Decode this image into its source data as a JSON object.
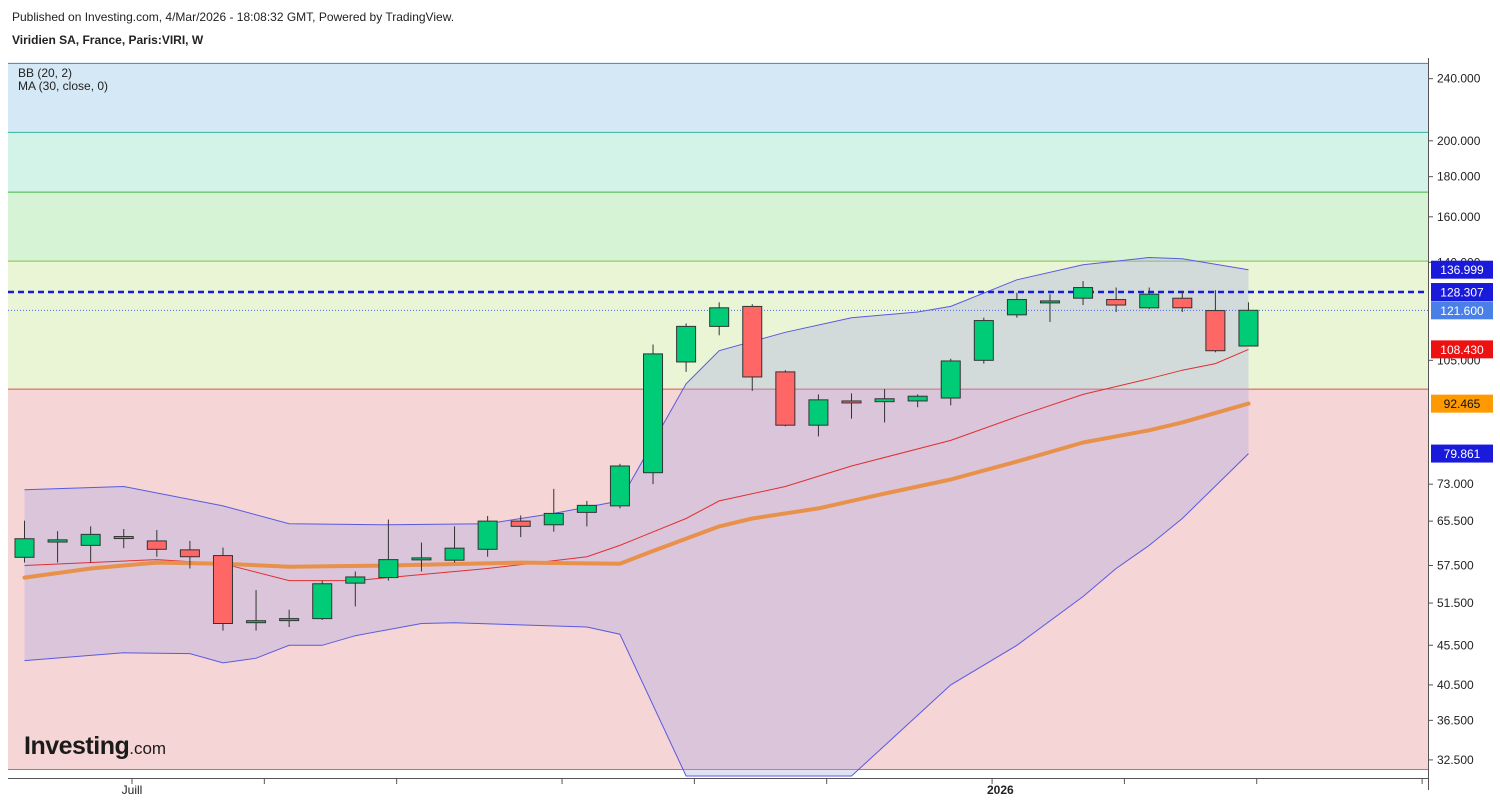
{
  "header": {
    "published": "Published on Investing.com, 4/Mar/2026 - 18:08:32 GMT, Powered by TradingView.",
    "instrument": "Viridien SA, France, Paris:VIRI, W"
  },
  "indicators": {
    "bb": "BB (20, 2)",
    "ma": "MA (30, close, 0)"
  },
  "logo": {
    "name": "Investing",
    "suffix": ".com"
  },
  "chart_data": {
    "type": "candlestick",
    "scale": "log",
    "ylim": [
      31.0,
      255.0
    ],
    "y_ticks": [
      {
        "value": 240,
        "label": "240.000"
      },
      {
        "value": 200,
        "label": "200.000"
      },
      {
        "value": 180,
        "label": "180.000"
      },
      {
        "value": 160,
        "label": "160.000"
      },
      {
        "value": 140,
        "label": "140.000"
      },
      {
        "value": 105,
        "label": "105.000"
      },
      {
        "value": 73,
        "label": "73.000"
      },
      {
        "value": 65.5,
        "label": "65.500"
      },
      {
        "value": 57.5,
        "label": "57.500"
      },
      {
        "value": 51.5,
        "label": "51.500"
      },
      {
        "value": 45.5,
        "label": "45.500"
      },
      {
        "value": 40.5,
        "label": "40.500"
      },
      {
        "value": 36.5,
        "label": "36.500"
      },
      {
        "value": 32.5,
        "label": "32.500"
      }
    ],
    "x_labels": [
      {
        "index": 3.25,
        "label": "Juill"
      },
      {
        "index": 29.5,
        "label": "2026"
      }
    ],
    "x_ticks": [
      3.25,
      7.25,
      11.25,
      16.25,
      20.25,
      24.25,
      29.25,
      33.25,
      37.25,
      42.25
    ],
    "fib_bands": [
      {
        "from": 31.6,
        "to": 96.5,
        "color": "#f5d5d5"
      },
      {
        "from": 96.5,
        "to": 140.5,
        "color": "#eaf5d5"
      },
      {
        "from": 140.5,
        "to": 172.0,
        "color": "#d6f3d6"
      },
      {
        "from": 172.0,
        "to": 205.0,
        "color": "#d4f3e8"
      },
      {
        "from": 205.0,
        "to": 251.0,
        "color": "#d5e8f5"
      }
    ],
    "fib_lines": [
      {
        "value": 31.6,
        "color": "#888888"
      },
      {
        "value": 96.5,
        "color": "#d9534f"
      },
      {
        "value": 140.5,
        "color": "#88c040"
      },
      {
        "value": 172.0,
        "color": "#44b844"
      },
      {
        "value": 205.0,
        "color": "#33b59a"
      },
      {
        "value": 251.0,
        "color": "#3a86c8"
      }
    ],
    "candles": [
      {
        "o": 58.9,
        "h": 65.6,
        "l": 58.0,
        "c": 62.2
      },
      {
        "o": 61.6,
        "h": 63.6,
        "l": 58.0,
        "c": 62.0
      },
      {
        "o": 61.0,
        "h": 64.5,
        "l": 58.0,
        "c": 63.0
      },
      {
        "o": 62.6,
        "h": 64.0,
        "l": 60.5,
        "c": 62.3
      },
      {
        "o": 61.8,
        "h": 63.8,
        "l": 59.0,
        "c": 60.3
      },
      {
        "o": 60.2,
        "h": 61.8,
        "l": 57.0,
        "c": 59.0
      },
      {
        "o": 59.2,
        "h": 60.6,
        "l": 47.5,
        "c": 48.5
      },
      {
        "o": 48.8,
        "h": 53.5,
        "l": 47.5,
        "c": 48.9
      },
      {
        "o": 49.0,
        "h": 50.5,
        "l": 48.0,
        "c": 49.2
      },
      {
        "o": 49.2,
        "h": 55.0,
        "l": 49.0,
        "c": 54.5
      },
      {
        "o": 54.6,
        "h": 56.5,
        "l": 51.0,
        "c": 55.6
      },
      {
        "o": 55.5,
        "h": 65.8,
        "l": 55.0,
        "c": 58.5
      },
      {
        "o": 58.6,
        "h": 61.5,
        "l": 56.5,
        "c": 58.8
      },
      {
        "o": 58.4,
        "h": 64.5,
        "l": 58.0,
        "c": 60.5
      },
      {
        "o": 60.3,
        "h": 66.5,
        "l": 59.0,
        "c": 65.5
      },
      {
        "o": 65.5,
        "h": 66.6,
        "l": 62.5,
        "c": 64.5
      },
      {
        "o": 64.8,
        "h": 72.0,
        "l": 63.5,
        "c": 67.0
      },
      {
        "o": 67.2,
        "h": 69.5,
        "l": 64.5,
        "c": 68.6
      },
      {
        "o": 68.5,
        "h": 77.5,
        "l": 68.0,
        "c": 77.0
      },
      {
        "o": 75.5,
        "h": 110.0,
        "l": 73.0,
        "c": 107.0
      },
      {
        "o": 104.5,
        "h": 117.0,
        "l": 101.5,
        "c": 116.0
      },
      {
        "o": 116.0,
        "h": 124.5,
        "l": 113.0,
        "c": 122.5
      },
      {
        "o": 123.0,
        "h": 123.8,
        "l": 96.0,
        "c": 100.0
      },
      {
        "o": 101.5,
        "h": 102.0,
        "l": 86.5,
        "c": 86.8
      },
      {
        "o": 86.8,
        "h": 95.0,
        "l": 84.0,
        "c": 93.5
      },
      {
        "o": 93.2,
        "h": 95.3,
        "l": 88.5,
        "c": 92.8
      },
      {
        "o": 93.0,
        "h": 96.5,
        "l": 87.5,
        "c": 93.8
      },
      {
        "o": 93.2,
        "h": 95.0,
        "l": 91.5,
        "c": 94.5
      },
      {
        "o": 94.0,
        "h": 105.5,
        "l": 92.0,
        "c": 104.8
      },
      {
        "o": 105.0,
        "h": 119.0,
        "l": 104.0,
        "c": 118.0
      },
      {
        "o": 120.0,
        "h": 128.0,
        "l": 119.0,
        "c": 125.5
      },
      {
        "o": 124.7,
        "h": 127.5,
        "l": 117.5,
        "c": 125.0
      },
      {
        "o": 126.0,
        "h": 132.5,
        "l": 123.5,
        "c": 130.0
      },
      {
        "o": 125.5,
        "h": 130.0,
        "l": 121.0,
        "c": 123.5
      },
      {
        "o": 122.5,
        "h": 130.0,
        "l": 122.0,
        "c": 127.5
      },
      {
        "o": 126.0,
        "h": 128.5,
        "l": 121.0,
        "c": 122.5
      },
      {
        "o": 121.5,
        "h": 129.0,
        "l": 107.5,
        "c": 108.0
      },
      {
        "o": 109.5,
        "h": 124.5,
        "l": 109.5,
        "c": 121.6
      }
    ],
    "bb_upper": [
      {
        "i": 0,
        "v": 71.8
      },
      {
        "i": 3,
        "v": 72.5
      },
      {
        "i": 6,
        "v": 68.5
      },
      {
        "i": 8,
        "v": 65.0
      },
      {
        "i": 11,
        "v": 64.8
      },
      {
        "i": 14,
        "v": 65.0
      },
      {
        "i": 16,
        "v": 67.0
      },
      {
        "i": 18,
        "v": 69.5
      },
      {
        "i": 20,
        "v": 98.0
      },
      {
        "i": 21,
        "v": 108.0
      },
      {
        "i": 23,
        "v": 114.0
      },
      {
        "i": 25,
        "v": 119.0
      },
      {
        "i": 27,
        "v": 121.0
      },
      {
        "i": 28,
        "v": 123.0
      },
      {
        "i": 30,
        "v": 133.0
      },
      {
        "i": 32,
        "v": 139.0
      },
      {
        "i": 34,
        "v": 142.0
      },
      {
        "i": 35,
        "v": 141.5
      },
      {
        "i": 37,
        "v": 137.0
      }
    ],
    "bb_lower": [
      {
        "i": 0,
        "v": 43.5
      },
      {
        "i": 3,
        "v": 44.5
      },
      {
        "i": 5,
        "v": 44.4
      },
      {
        "i": 6,
        "v": 43.2
      },
      {
        "i": 7,
        "v": 43.8
      },
      {
        "i": 8,
        "v": 45.5
      },
      {
        "i": 9,
        "v": 45.5
      },
      {
        "i": 10,
        "v": 46.8
      },
      {
        "i": 12,
        "v": 48.5
      },
      {
        "i": 13,
        "v": 48.6
      },
      {
        "i": 17,
        "v": 48.0
      },
      {
        "i": 18,
        "v": 47.0
      },
      {
        "i": 20,
        "v": 30.2
      },
      {
        "i": 24,
        "v": 29.2
      },
      {
        "i": 25,
        "v": 30.6
      },
      {
        "i": 28,
        "v": 40.5
      },
      {
        "i": 30,
        "v": 45.5
      },
      {
        "i": 32,
        "v": 52.5
      },
      {
        "i": 33,
        "v": 57.0
      },
      {
        "i": 34,
        "v": 61.0
      },
      {
        "i": 35,
        "v": 66.0
      },
      {
        "i": 37,
        "v": 79.861
      }
    ],
    "bb_basis": [
      {
        "i": 0,
        "v": 57.5
      },
      {
        "i": 4,
        "v": 58.5
      },
      {
        "i": 6,
        "v": 57.8
      },
      {
        "i": 8,
        "v": 55.0
      },
      {
        "i": 10,
        "v": 55.0
      },
      {
        "i": 14,
        "v": 57.0
      },
      {
        "i": 17,
        "v": 59.0
      },
      {
        "i": 18,
        "v": 61.0
      },
      {
        "i": 20,
        "v": 66.0
      },
      {
        "i": 21,
        "v": 69.5
      },
      {
        "i": 23,
        "v": 72.5
      },
      {
        "i": 25,
        "v": 77.0
      },
      {
        "i": 28,
        "v": 83.0
      },
      {
        "i": 30,
        "v": 89.0
      },
      {
        "i": 32,
        "v": 95.0
      },
      {
        "i": 34,
        "v": 99.5
      },
      {
        "i": 35,
        "v": 102.0
      },
      {
        "i": 36,
        "v": 104.0
      },
      {
        "i": 37,
        "v": 108.43
      }
    ],
    "ma30": [
      {
        "i": 0,
        "v": 55.5
      },
      {
        "i": 2,
        "v": 57.0
      },
      {
        "i": 4,
        "v": 58.0
      },
      {
        "i": 6,
        "v": 57.8
      },
      {
        "i": 8,
        "v": 57.3
      },
      {
        "i": 11,
        "v": 57.5
      },
      {
        "i": 15,
        "v": 58.0
      },
      {
        "i": 18,
        "v": 57.8
      },
      {
        "i": 19,
        "v": 60.0
      },
      {
        "i": 21,
        "v": 64.5
      },
      {
        "i": 22,
        "v": 66.0
      },
      {
        "i": 24,
        "v": 68.0
      },
      {
        "i": 26,
        "v": 71.0
      },
      {
        "i": 28,
        "v": 74.0
      },
      {
        "i": 30,
        "v": 78.0
      },
      {
        "i": 32,
        "v": 82.5
      },
      {
        "i": 34,
        "v": 85.5
      },
      {
        "i": 35,
        "v": 87.5
      },
      {
        "i": 37,
        "v": 92.465
      }
    ],
    "h_lines": [
      {
        "value": 128.307,
        "color": "#1a1adb",
        "style": "dashed"
      },
      {
        "value": 121.6,
        "color": "#4a6ee8",
        "style": "dotted"
      }
    ],
    "price_labels": [
      {
        "value": 136.999,
        "label": "136.999",
        "bg": "#1a1adb",
        "fg": "#ffffff"
      },
      {
        "value": 128.307,
        "label": "128.307",
        "bg": "#1a1adb",
        "fg": "#ffffff"
      },
      {
        "value": 121.6,
        "label": "121.600",
        "bg": "#4a7fe8",
        "fg": "#ffffff"
      },
      {
        "value": 108.43,
        "label": "108.430",
        "bg": "#ee1111",
        "fg": "#ffffff"
      },
      {
        "value": 92.465,
        "label": "92.465",
        "bg": "#ff9900",
        "fg": "#111111"
      },
      {
        "value": 79.861,
        "label": "79.861",
        "bg": "#1a1adb",
        "fg": "#ffffff"
      }
    ],
    "colors": {
      "up": "#00cc77",
      "down": "#ff6666",
      "outline": "#333333",
      "bb_fill": "rgba(170,170,230,0.35)",
      "bb_band_line": "#5a5ae0",
      "bb_basis": "#e03030",
      "ma30": "#e8914a"
    }
  }
}
